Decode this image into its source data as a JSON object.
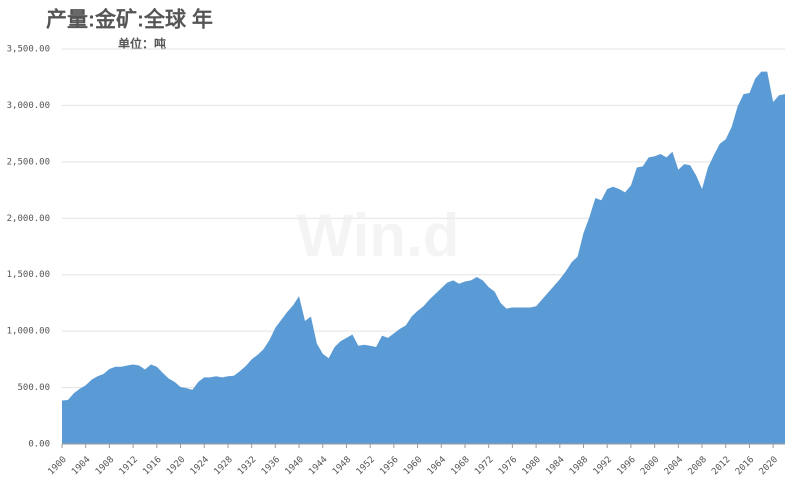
{
  "chart_data": {
    "type": "area",
    "title": "产量:金矿:全球 年",
    "subtitle": "单位：吨",
    "watermark": "Win.d",
    "color": "#5b9bd5",
    "grid": true,
    "x": [
      1900,
      1901,
      1902,
      1903,
      1904,
      1905,
      1906,
      1907,
      1908,
      1909,
      1910,
      1911,
      1912,
      1913,
      1914,
      1915,
      1916,
      1917,
      1918,
      1919,
      1920,
      1921,
      1922,
      1923,
      1924,
      1925,
      1926,
      1927,
      1928,
      1929,
      1930,
      1931,
      1932,
      1933,
      1934,
      1935,
      1936,
      1937,
      1938,
      1939,
      1940,
      1941,
      1942,
      1943,
      1944,
      1945,
      1946,
      1947,
      1948,
      1949,
      1950,
      1951,
      1952,
      1953,
      1954,
      1955,
      1956,
      1957,
      1958,
      1959,
      1960,
      1961,
      1962,
      1963,
      1964,
      1965,
      1966,
      1967,
      1968,
      1969,
      1970,
      1971,
      1972,
      1973,
      1974,
      1975,
      1976,
      1977,
      1978,
      1979,
      1980,
      1981,
      1982,
      1983,
      1984,
      1985,
      1986,
      1987,
      1988,
      1989,
      1990,
      1991,
      1992,
      1993,
      1994,
      1995,
      1996,
      1997,
      1998,
      1999,
      2000,
      2001,
      2002,
      2003,
      2004,
      2005,
      2006,
      2007,
      2008,
      2009,
      2010,
      2011,
      2012,
      2013,
      2014,
      2015,
      2016,
      2017,
      2018,
      2019,
      2020,
      2021,
      2022
    ],
    "values": [
      385,
      390,
      450,
      490,
      520,
      570,
      600,
      620,
      665,
      685,
      685,
      695,
      705,
      695,
      660,
      705,
      685,
      630,
      580,
      550,
      505,
      495,
      480,
      550,
      590,
      590,
      600,
      590,
      600,
      605,
      645,
      690,
      750,
      790,
      840,
      920,
      1030,
      1100,
      1170,
      1230,
      1310,
      1090,
      1130,
      890,
      800,
      760,
      860,
      910,
      940,
      970,
      870,
      880,
      870,
      860,
      960,
      940,
      980,
      1020,
      1050,
      1130,
      1180,
      1220,
      1280,
      1330,
      1380,
      1430,
      1450,
      1420,
      1440,
      1450,
      1480,
      1450,
      1390,
      1350,
      1250,
      1200,
      1210,
      1210,
      1210,
      1210,
      1220,
      1280,
      1340,
      1400,
      1460,
      1530,
      1610,
      1660,
      1870,
      2010,
      2180,
      2160,
      2260,
      2280,
      2260,
      2230,
      2290,
      2450,
      2460,
      2540,
      2550,
      2570,
      2540,
      2590,
      2430,
      2480,
      2470,
      2380,
      2260,
      2450,
      2560,
      2660,
      2700,
      2810,
      2990,
      3100,
      3110,
      3240,
      3300,
      3300,
      3030,
      3090,
      3100
    ],
    "xlim": [
      1900,
      2022
    ],
    "xticks": [
      1900,
      1904,
      1908,
      1912,
      1916,
      1920,
      1924,
      1928,
      1932,
      1936,
      1940,
      1944,
      1948,
      1952,
      1956,
      1960,
      1964,
      1968,
      1972,
      1976,
      1980,
      1984,
      1988,
      1992,
      1996,
      2000,
      2004,
      2008,
      2012,
      2016,
      2020
    ],
    "ylim": [
      0,
      3500
    ],
    "yticks": [
      {
        "value": 0,
        "label": "0.00"
      },
      {
        "value": 500,
        "label": "500.00"
      },
      {
        "value": 1000,
        "label": "1,000.00"
      },
      {
        "value": 1500,
        "label": "1,500.00"
      },
      {
        "value": 2000,
        "label": "2,000.00"
      },
      {
        "value": 2500,
        "label": "2,500.00"
      },
      {
        "value": 3000,
        "label": "3,000.00"
      },
      {
        "value": 3500,
        "label": "3,500.00"
      }
    ]
  }
}
